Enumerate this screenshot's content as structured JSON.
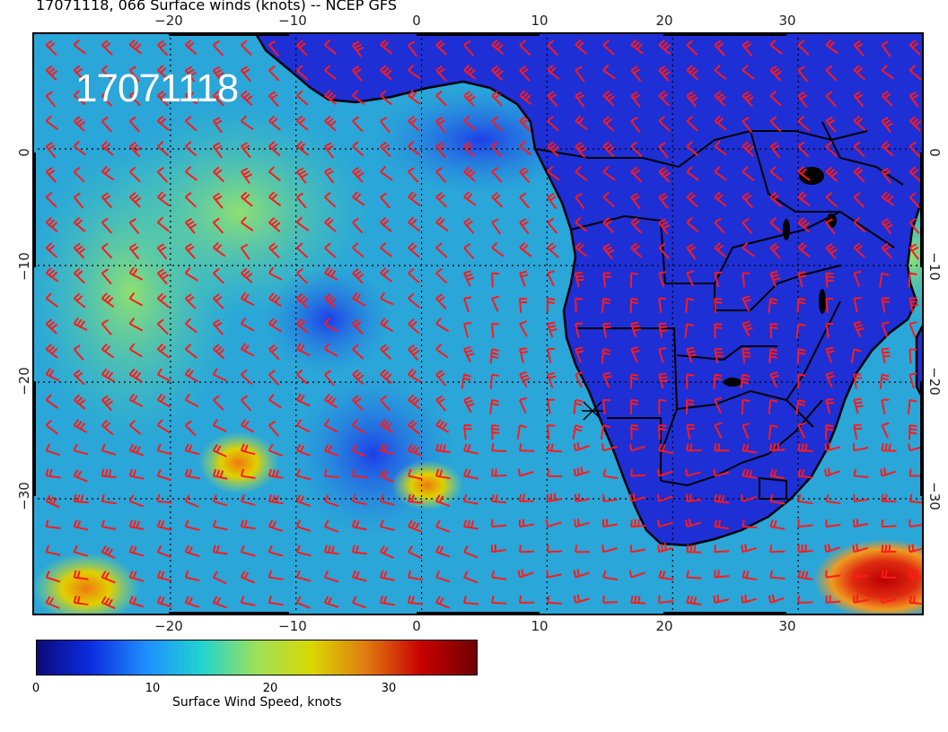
{
  "title": "17071118, 066 Surface winds (knots) -- NCEP GFS",
  "stamp": "17071118",
  "map": {
    "lon_range": [
      -31,
      40
    ],
    "lat_range": [
      -40,
      10
    ],
    "lon_ticks": [
      "−20",
      "−10",
      "0",
      "10",
      "20",
      "30"
    ],
    "lat_ticks": [
      "0",
      "−10",
      "−20",
      "−30"
    ],
    "land_color": "#1e2fd6",
    "ocean_color": "#2aa6d8",
    "barb_color": "#ff1a1a",
    "coast_color": "#000000"
  },
  "colorbar": {
    "label": "Surface Wind Speed, knots",
    "range": [
      0,
      38
    ],
    "ticks": [
      "0",
      "10",
      "20",
      "30"
    ],
    "colors": [
      "#0a0a7a",
      "#0d2ee0",
      "#1f8fff",
      "#20d4d0",
      "#9ee05a",
      "#d8d800",
      "#e07a10",
      "#c80000",
      "#6e0000"
    ]
  }
}
